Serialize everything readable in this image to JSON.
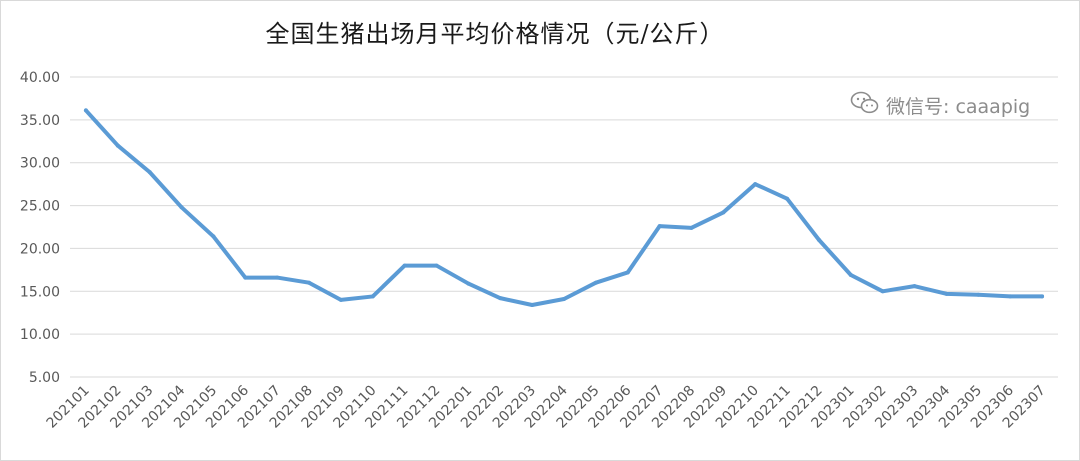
{
  "watermark": {
    "icon": "wechat-icon",
    "text": "微信号: caaapig"
  },
  "colors": {
    "line": "#5b9bd5",
    "grid": "#d9d9d9",
    "text": "#595959"
  },
  "chart_data": {
    "type": "line",
    "title": "全国生猪出场月平均价格情况（元/公斤）",
    "xlabel": "",
    "ylabel": "",
    "ylim": [
      5,
      40
    ],
    "y_ticks": [
      "5.00",
      "10.00",
      "15.00",
      "20.00",
      "25.00",
      "30.00",
      "35.00",
      "40.00"
    ],
    "grid": "horizontal",
    "legend": "none",
    "categories": [
      "202101",
      "202102",
      "202103",
      "202104",
      "202105",
      "202106",
      "202107",
      "202108",
      "202109",
      "202110",
      "202111",
      "202112",
      "202201",
      "202202",
      "202203",
      "202204",
      "202205",
      "202206",
      "202207",
      "202208",
      "202209",
      "202210",
      "202211",
      "202212",
      "202301",
      "202302",
      "202303",
      "202304",
      "202305",
      "202306",
      "202307"
    ],
    "series": [
      {
        "values": [
          36.1,
          32.0,
          28.9,
          24.8,
          21.4,
          16.6,
          16.6,
          16.0,
          14.0,
          14.4,
          18.0,
          18.0,
          15.9,
          14.2,
          13.4,
          14.1,
          16.0,
          17.2,
          22.6,
          22.4,
          24.2,
          27.5,
          25.8,
          21.0,
          16.9,
          15.0,
          15.6,
          14.7,
          14.6,
          14.4,
          14.4
        ]
      }
    ]
  }
}
